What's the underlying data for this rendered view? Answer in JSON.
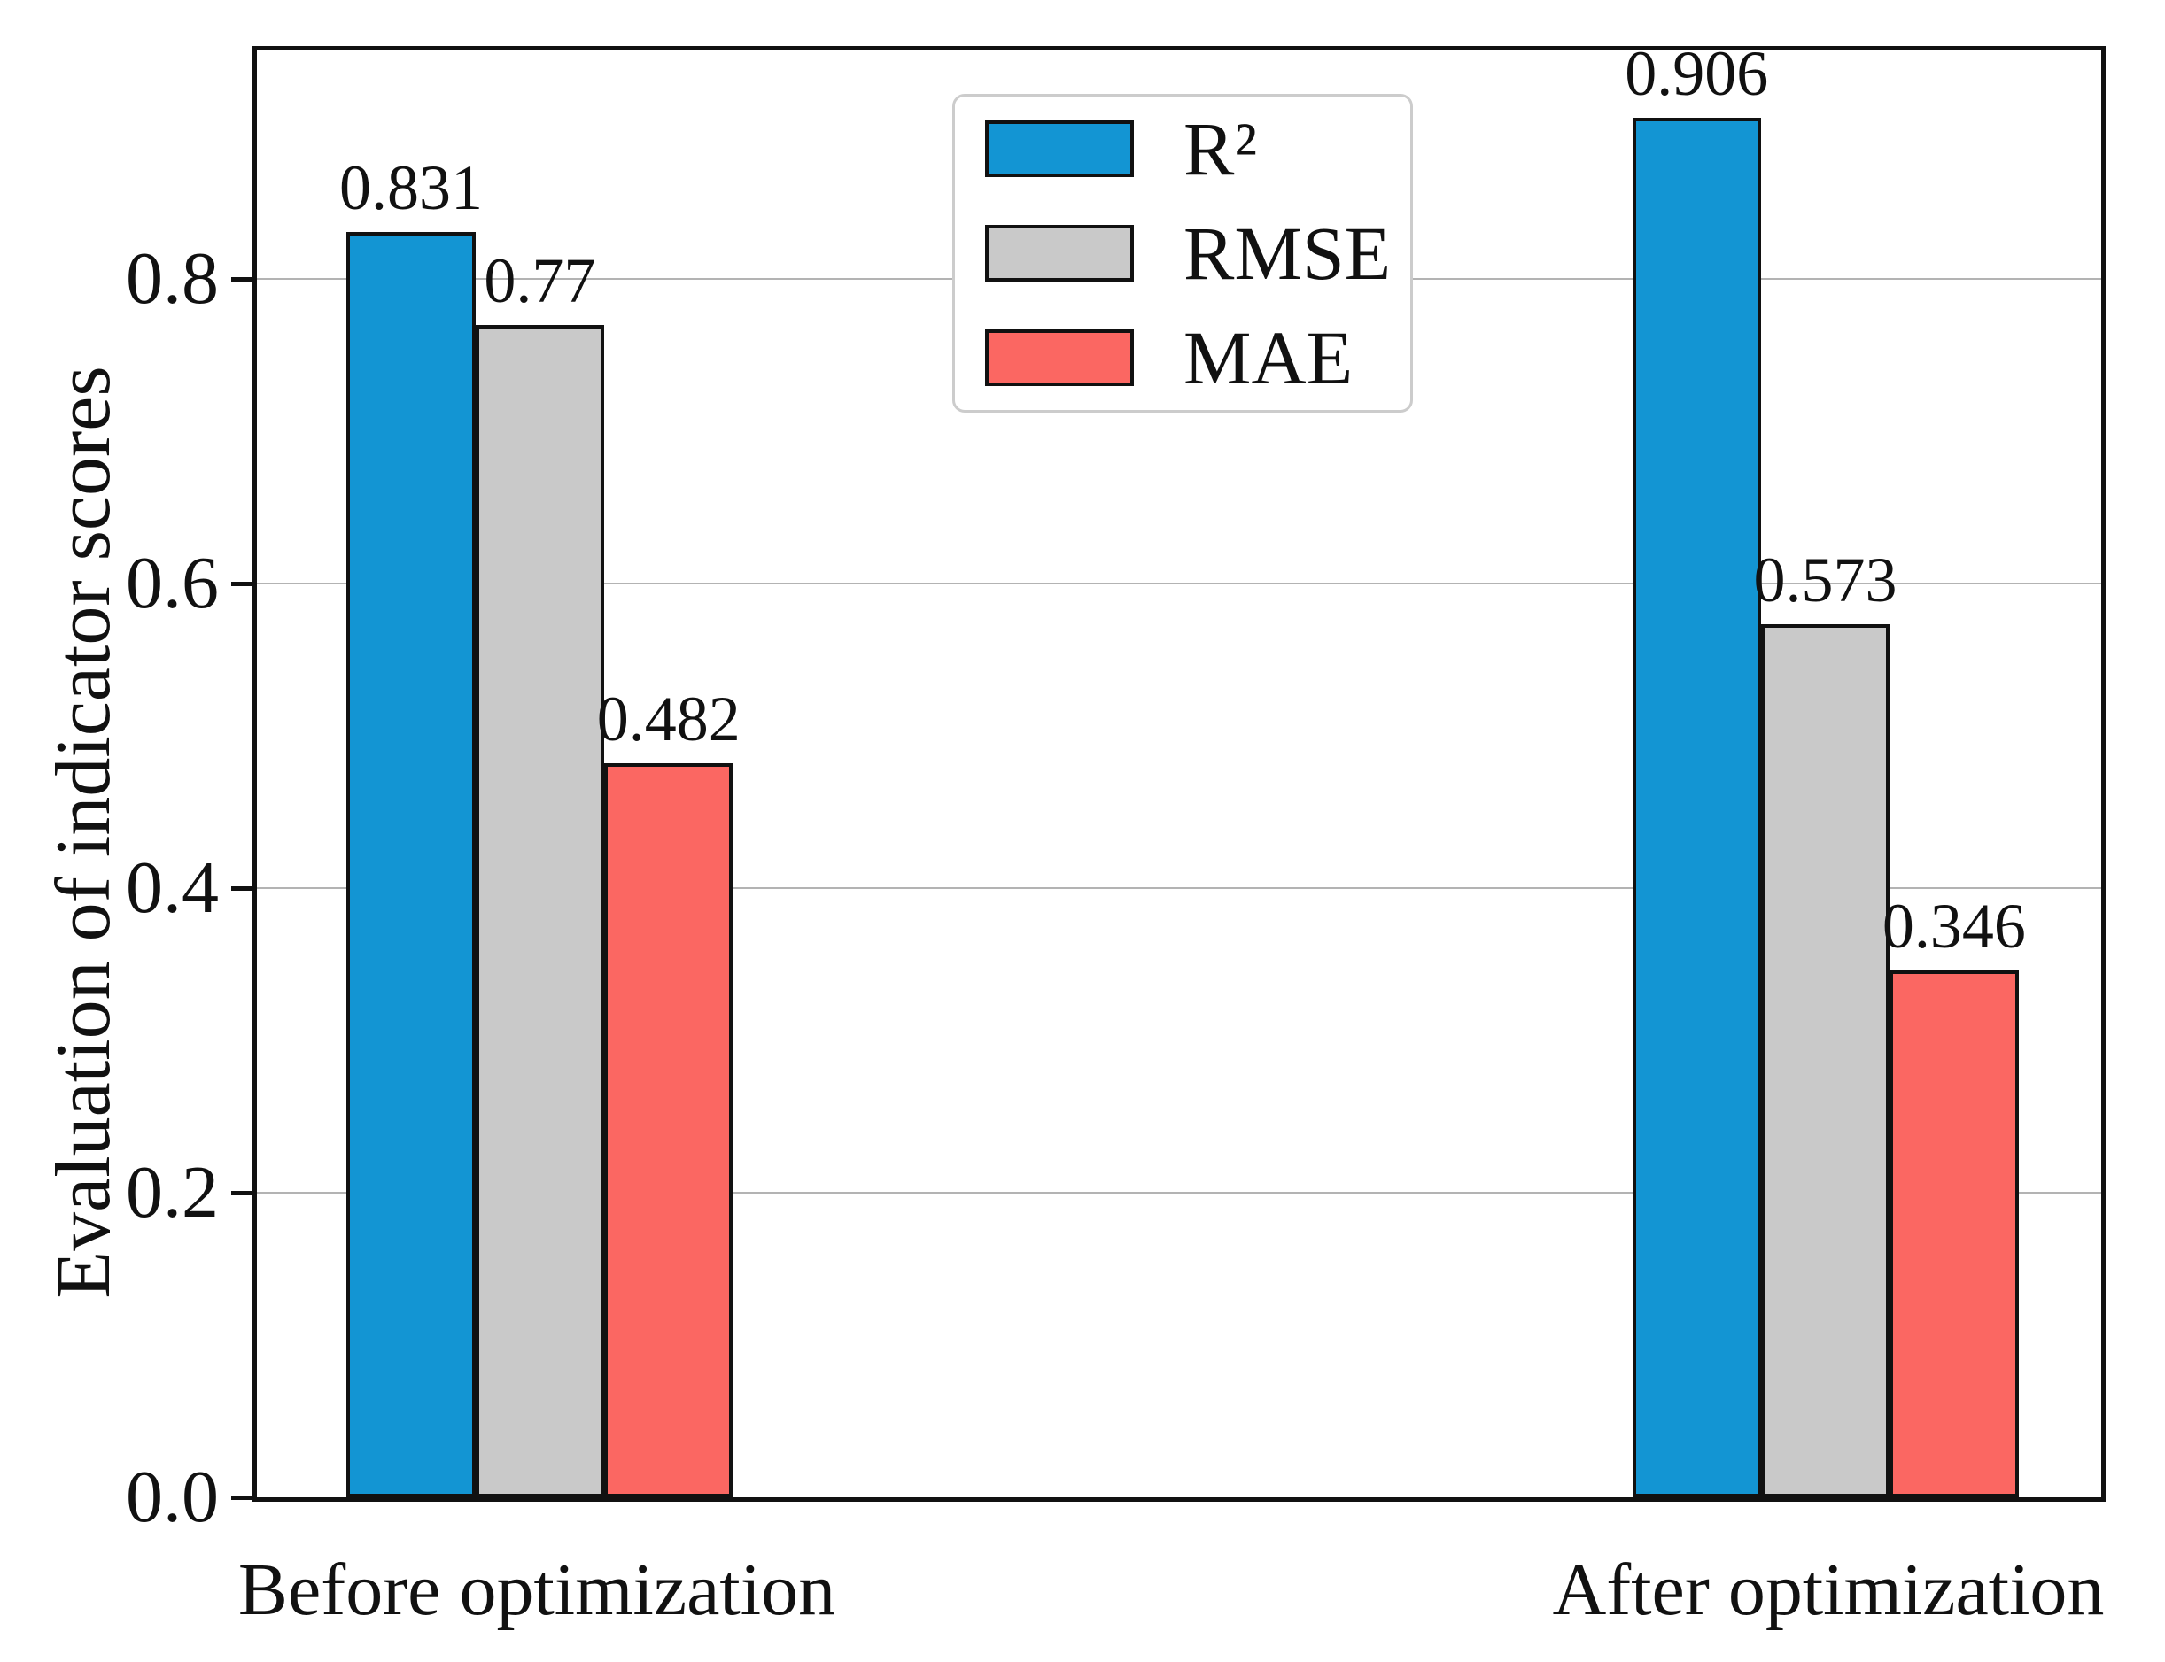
{
  "figure": {
    "background": "#ffffff",
    "frame_color": "#111111"
  },
  "chart_data": {
    "type": "bar",
    "title": "",
    "xlabel": "",
    "ylabel": "Evaluation of indicator scores",
    "categories": [
      "Before optimization",
      "After optimization"
    ],
    "series": [
      {
        "name": "R²",
        "color": "#1395d3",
        "values": [
          0.831,
          0.906
        ]
      },
      {
        "name": "RMSE",
        "color": "#c9c9c9",
        "values": [
          0.77,
          0.573
        ]
      },
      {
        "name": "MAE",
        "color": "#fb6762",
        "values": [
          0.482,
          0.346
        ]
      }
    ],
    "bar_value_labels": [
      [
        "0.831",
        "0.77",
        "0.482"
      ],
      [
        "0.906",
        "0.573",
        "0.346"
      ]
    ],
    "ylim": [
      0,
      0.95
    ],
    "yticks": [
      0,
      0.2,
      0.4,
      0.6,
      0.8
    ],
    "grid": true,
    "grid_color": "#b3b3b3",
    "bar_edge_color": "#111111",
    "legend_position": "upper center",
    "layout": {
      "group_center_fracs": [
        0.1534,
        0.8504
      ],
      "bar_width_frac": 0.0698
    }
  }
}
